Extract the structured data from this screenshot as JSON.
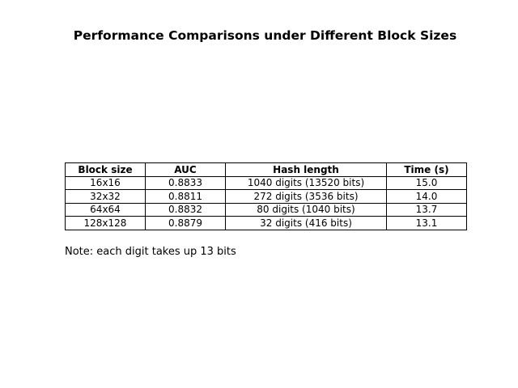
{
  "chart_data": {
    "type": "table",
    "title": "Performance Comparisons under Different Block Sizes",
    "columns": [
      "Block size",
      "AUC",
      "Hash length",
      "Time (s)"
    ],
    "rows": [
      [
        "16x16",
        "0.8833",
        "1040 digits (13520 bits)",
        "15.0"
      ],
      [
        "32x32",
        "0.8811",
        "272 digits (3536 bits)",
        "14.0"
      ],
      [
        "64x64",
        "0.8832",
        "80 digits (1040 bits)",
        "13.7"
      ],
      [
        "128x128",
        "0.8879",
        "32 digits (416 bits)",
        "13.1"
      ]
    ],
    "note": "Note: each digit takes up 13 bits"
  }
}
